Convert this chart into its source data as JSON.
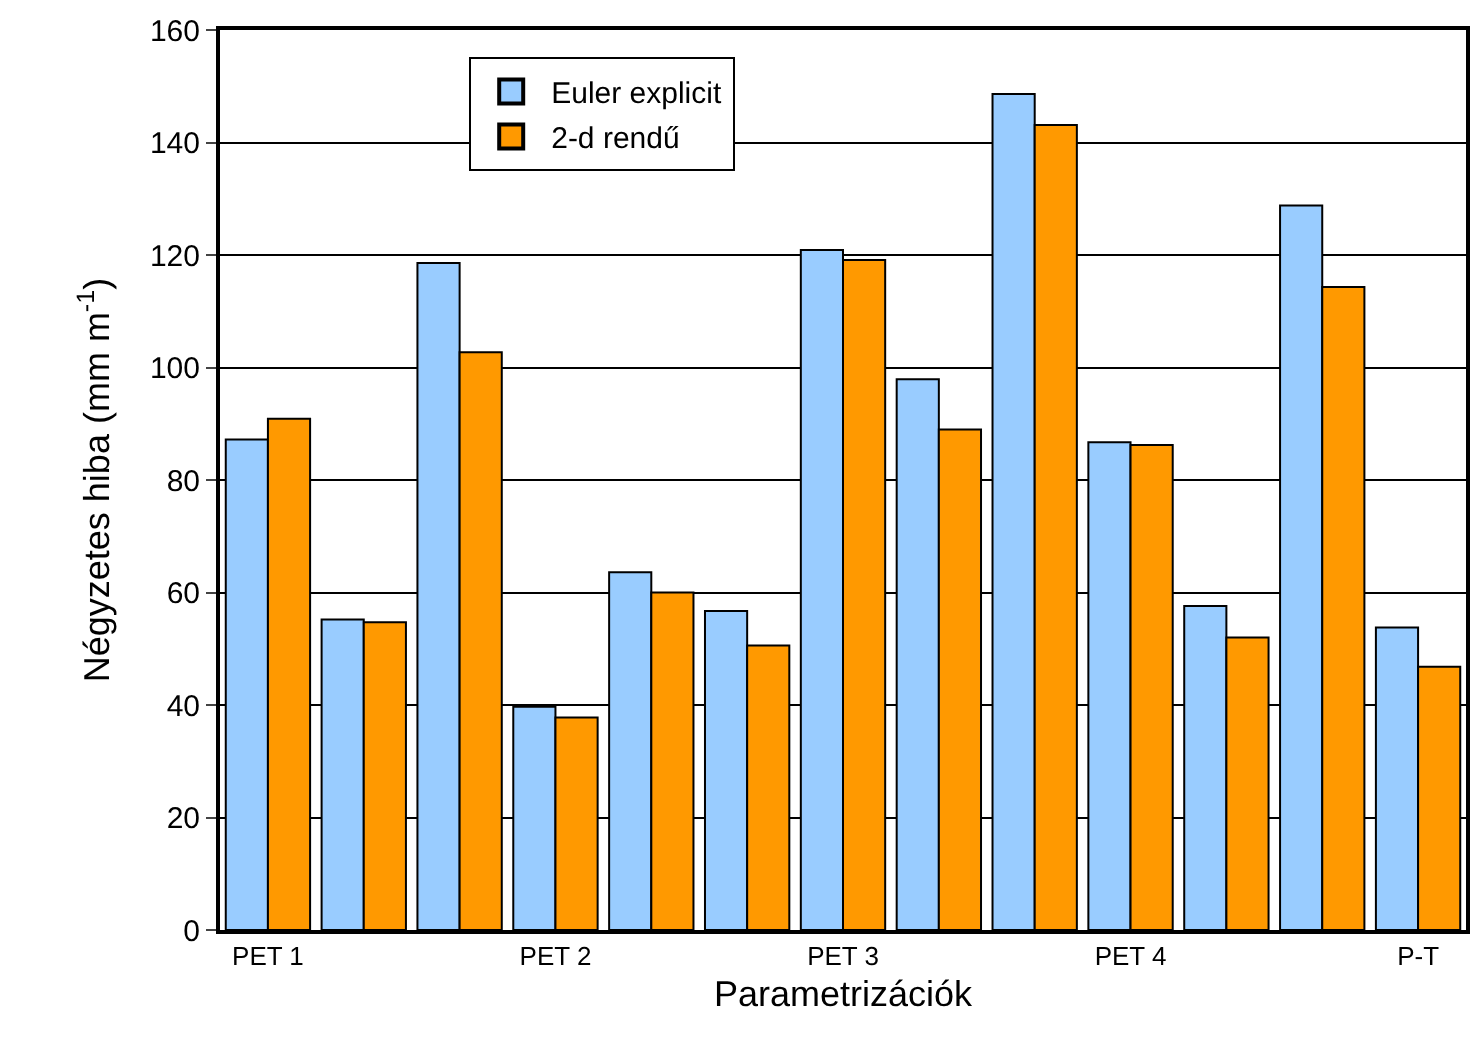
{
  "chart_data": {
    "type": "bar",
    "xlabel": "Parametrizációk",
    "ylabel": "Négyzetes hiba (mm m$^{-1}$)",
    "categories": [
      "PET 1",
      null,
      null,
      "PET 2",
      null,
      null,
      "PET 3",
      null,
      null,
      "PET 4",
      null,
      null,
      "P-T"
    ],
    "series": [
      {
        "name": "Euler explicit",
        "color": "#99ccff",
        "values": [
          87.2,
          55.2,
          118.6,
          39.7,
          63.6,
          56.7,
          120.9,
          97.9,
          148.6,
          86.7,
          57.6,
          128.8,
          53.8
        ]
      },
      {
        "name": "2-d rendű",
        "color": "#ff9900",
        "values": [
          90.9,
          54.7,
          102.7,
          37.8,
          60.0,
          50.6,
          119.1,
          89.0,
          143.1,
          86.2,
          52.0,
          114.3,
          46.8
        ]
      }
    ],
    "ylim": [
      0,
      160
    ],
    "yticks": [
      0,
      20,
      40,
      60,
      80,
      100,
      120,
      140,
      160
    ],
    "grid": "y",
    "legend": "top left"
  }
}
